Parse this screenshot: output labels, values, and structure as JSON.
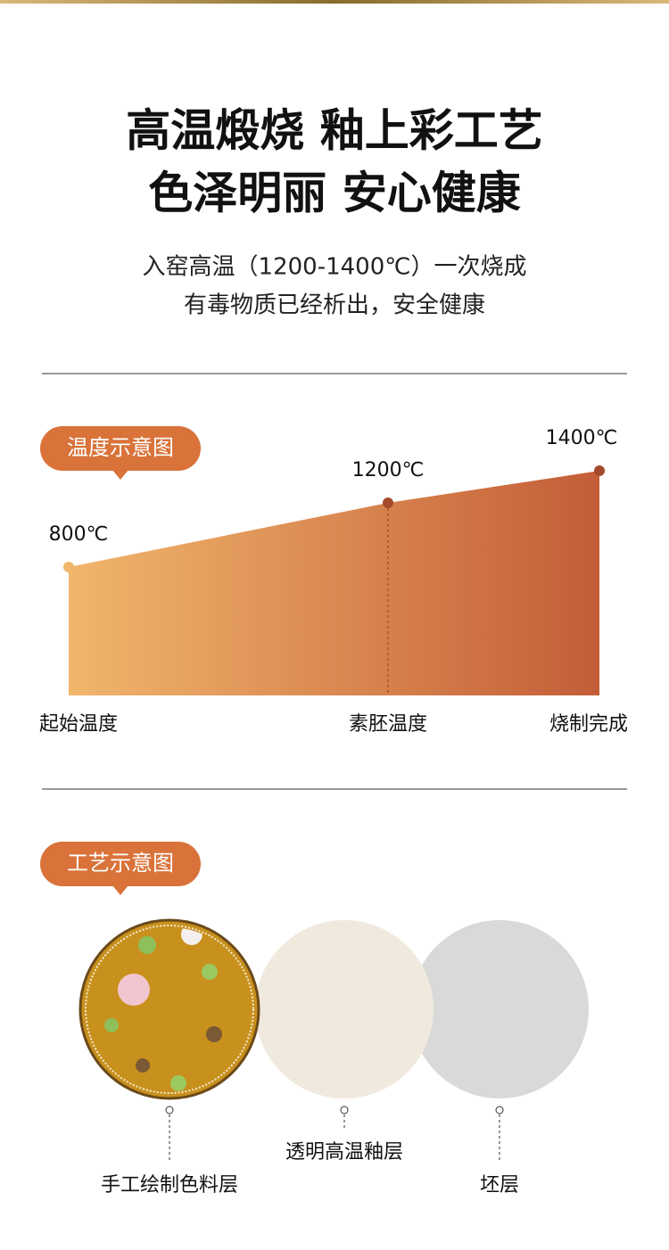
{
  "header": {
    "title_lines": [
      "高温煅烧 釉上彩工艺",
      "色泽明丽 安心健康"
    ],
    "subtitle_lines": [
      "入窑高温（1200-1400℃）一次烧成",
      "有毒物质已经析出，安全健康"
    ]
  },
  "chart_data": {
    "type": "area",
    "title": "温度示意图",
    "categories": [
      "起始温度",
      "素胚温度",
      "烧制完成"
    ],
    "values": [
      800,
      1200,
      1400
    ],
    "value_labels": [
      "800℃",
      "1200℃",
      "1400℃"
    ],
    "colors": [
      "#f1b66c",
      "#c35d37"
    ],
    "point_colors": [
      "#f1b66c",
      "#a34a2c",
      "#a34a2c"
    ]
  },
  "process": {
    "title": "工艺示意图",
    "layers": [
      {
        "label": "手工绘制色料层",
        "color": "#c8901c"
      },
      {
        "label": "透明高温釉层",
        "color": "#f0e9dd"
      },
      {
        "label": "坯层",
        "color": "#d9d9d9"
      }
    ]
  }
}
